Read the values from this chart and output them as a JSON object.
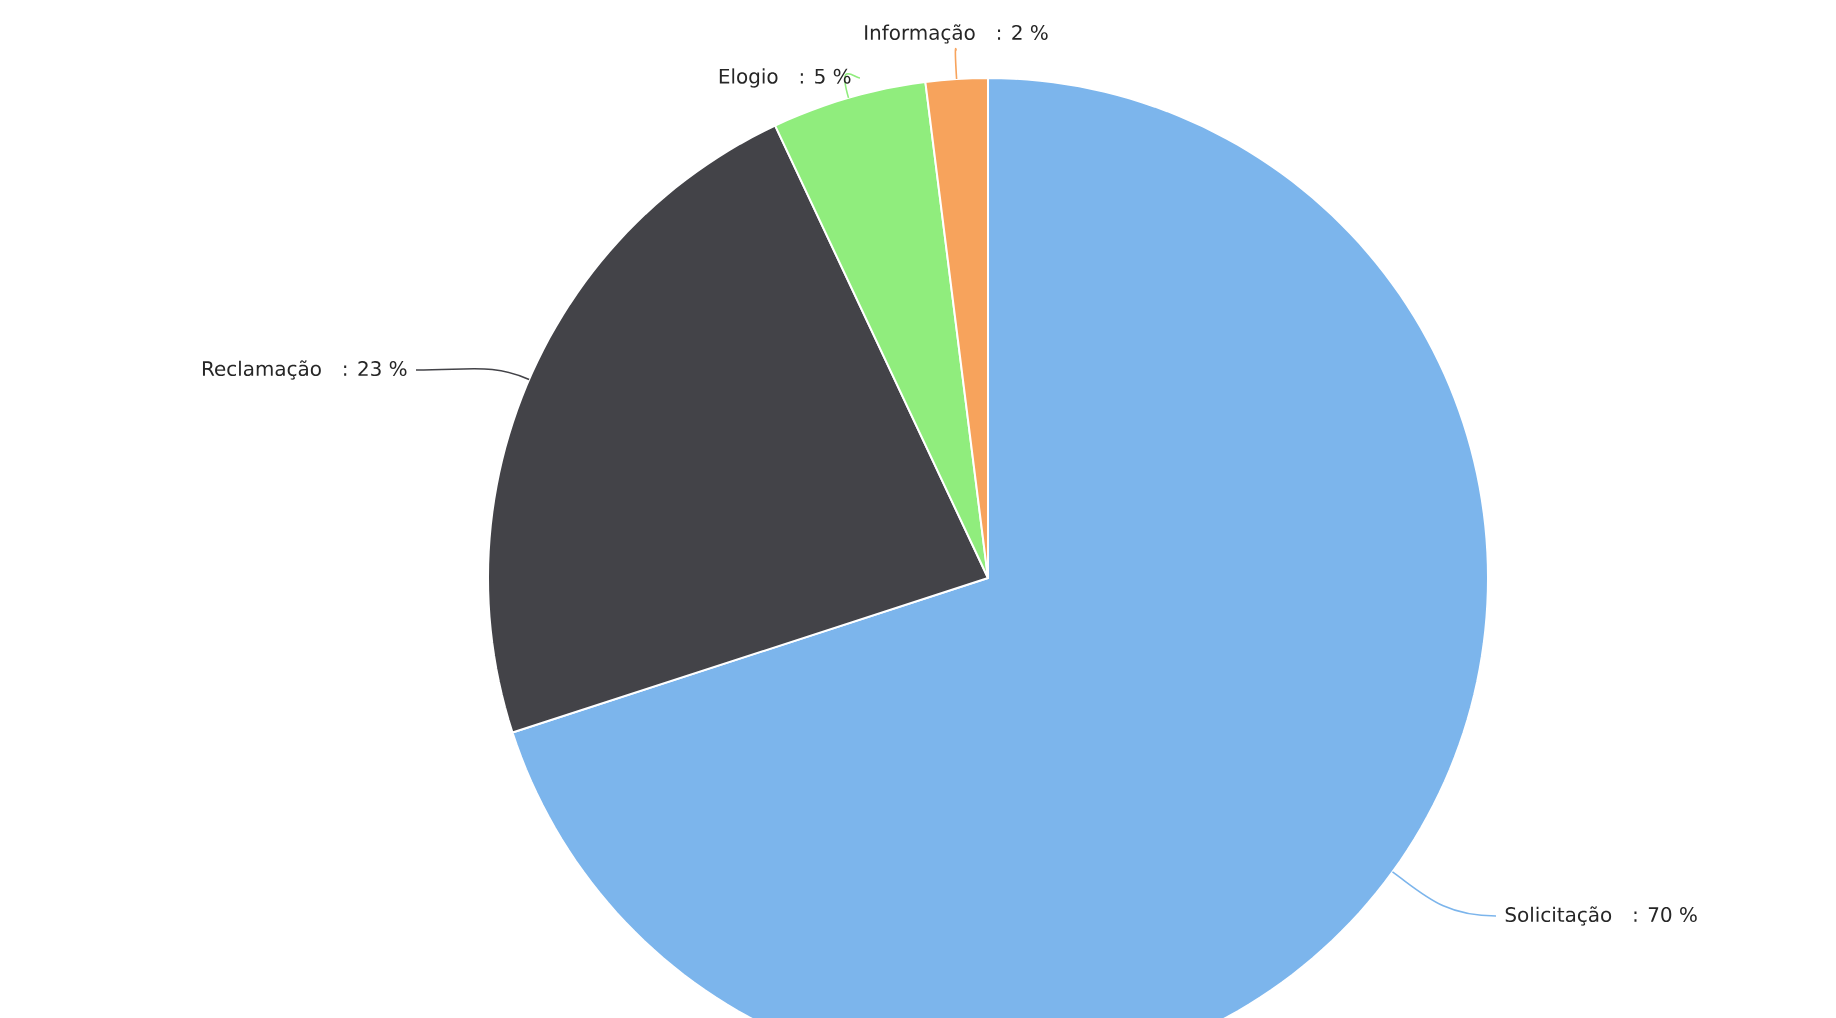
{
  "chart_data": {
    "type": "pie",
    "categories": [
      "Solicitação",
      "Reclamação",
      "Elogio",
      "Informação"
    ],
    "values": [
      70,
      23,
      5,
      2
    ],
    "colors": [
      "#7cb5ec",
      "#434348",
      "#90ed7d",
      "#f7a35c"
    ],
    "value_labels": [
      ": 70 %",
      ": 23 %",
      ": 5 %",
      ": 2 %"
    ]
  }
}
